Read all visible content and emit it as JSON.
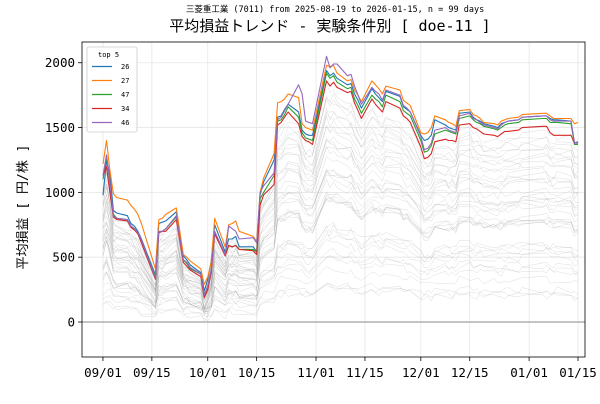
{
  "chart_data": {
    "type": "line",
    "suptitle": "三菱重工業 (7011) from 2025-08-19 to 2026-01-15, n = 99 days",
    "title": "平均損益トレンド - 実験条件別 [ doe-11 ]",
    "xlabel": "",
    "ylabel": "平均損益 [ 円/株 ]",
    "ylim": [
      -270,
      2160
    ],
    "xlim": [
      "2025-08-26",
      "2026-01-17"
    ],
    "y_ticks": [
      0,
      500,
      1000,
      1500,
      2000
    ],
    "x_tick_dates": [
      "2025-09-01",
      "2025-09-15",
      "2025-10-01",
      "2025-10-15",
      "2025-11-01",
      "2025-11-15",
      "2025-12-01",
      "2025-12-15",
      "2026-01-01",
      "2026-01-15"
    ],
    "x_tick_labels": [
      "09/01",
      "09/15",
      "10/01",
      "10/15",
      "11/01",
      "11/15",
      "12/01",
      "12/15",
      "01/01",
      "01/15"
    ],
    "grid": true,
    "zero_line": true,
    "legend_title": "top 5",
    "legend_position": "upper-left",
    "background_series_count": 40,
    "x": [
      "2025-09-01",
      "2025-09-02",
      "2025-09-03",
      "2025-09-04",
      "2025-09-05",
      "2025-09-08",
      "2025-09-09",
      "2025-09-10",
      "2025-09-11",
      "2025-09-12",
      "2025-09-16",
      "2025-09-17",
      "2025-09-18",
      "2025-09-19",
      "2025-09-22",
      "2025-09-24",
      "2025-09-25",
      "2025-09-26",
      "2025-09-29",
      "2025-09-30",
      "2025-10-01",
      "2025-10-02",
      "2025-10-03",
      "2025-10-06",
      "2025-10-07",
      "2025-10-08",
      "2025-10-09",
      "2025-10-10",
      "2025-10-14",
      "2025-10-15",
      "2025-10-16",
      "2025-10-17",
      "2025-10-20",
      "2025-10-21",
      "2025-10-22",
      "2025-10-23",
      "2025-10-24",
      "2025-10-27",
      "2025-10-28",
      "2025-10-29",
      "2025-10-30",
      "2025-10-31",
      "2025-11-04",
      "2025-11-05",
      "2025-11-06",
      "2025-11-07",
      "2025-11-10",
      "2025-11-11",
      "2025-11-12",
      "2025-11-13",
      "2025-11-14",
      "2025-11-17",
      "2025-11-18",
      "2025-11-19",
      "2025-11-20",
      "2025-11-21",
      "2025-11-25",
      "2025-11-26",
      "2025-11-27",
      "2025-11-28",
      "2025-12-01",
      "2025-12-02",
      "2025-12-03",
      "2025-12-04",
      "2025-12-05",
      "2025-12-08",
      "2025-12-09",
      "2025-12-10",
      "2025-12-11",
      "2025-12-12",
      "2025-12-15",
      "2025-12-16",
      "2025-12-17",
      "2025-12-18",
      "2025-12-19",
      "2025-12-22",
      "2025-12-23",
      "2025-12-24",
      "2025-12-25",
      "2025-12-26",
      "2025-12-29",
      "2025-12-30",
      "2026-01-05",
      "2026-01-06",
      "2026-01-07",
      "2026-01-08",
      "2026-01-09",
      "2026-01-13",
      "2026-01-14",
      "2026-01-15"
    ],
    "series": [
      {
        "name": "26",
        "color": "#1f77b4",
        "values": [
          980,
          1240,
          1150,
          860,
          840,
          820,
          760,
          740,
          700,
          640,
          360,
          760,
          770,
          780,
          850,
          510,
          480,
          440,
          380,
          240,
          330,
          470,
          750,
          540,
          640,
          640,
          660,
          580,
          580,
          540,
          980,
          1080,
          1250,
          1580,
          1590,
          1640,
          1680,
          1620,
          1480,
          1450,
          1440,
          1440,
          1940,
          1900,
          1920,
          1880,
          1830,
          1840,
          1760,
          1710,
          1650,
          1800,
          1760,
          1730,
          1700,
          1780,
          1740,
          1660,
          1640,
          1620,
          1440,
          1400,
          1410,
          1440,
          1560,
          1520,
          1500,
          1490,
          1480,
          1610,
          1620,
          1580,
          1560,
          1550,
          1530,
          1510,
          1500,
          1530,
          1540,
          1550,
          1560,
          1580,
          1590,
          1590,
          1570,
          1560,
          1560,
          1550,
          1380,
          1380
        ]
      },
      {
        "name": "27",
        "color": "#ff7f0e",
        "values": [
          1220,
          1400,
          1170,
          990,
          960,
          940,
          900,
          870,
          830,
          760,
          410,
          790,
          800,
          830,
          880,
          520,
          500,
          470,
          410,
          290,
          350,
          460,
          800,
          580,
          750,
          760,
          780,
          700,
          660,
          620,
          1000,
          1110,
          1300,
          1690,
          1700,
          1720,
          1760,
          1730,
          1530,
          1500,
          1490,
          1480,
          1980,
          1970,
          1980,
          1920,
          1860,
          1870,
          1790,
          1750,
          1700,
          1860,
          1830,
          1800,
          1760,
          1820,
          1790,
          1710,
          1690,
          1670,
          1460,
          1450,
          1460,
          1500,
          1590,
          1560,
          1540,
          1530,
          1510,
          1630,
          1640,
          1600,
          1590,
          1570,
          1540,
          1530,
          1520,
          1550,
          1560,
          1570,
          1580,
          1600,
          1610,
          1610,
          1590,
          1570,
          1570,
          1570,
          1530,
          1540
        ]
      },
      {
        "name": "47",
        "color": "#2ca02c",
        "values": [
          1100,
          1280,
          1070,
          830,
          800,
          790,
          740,
          720,
          690,
          620,
          350,
          690,
          700,
          720,
          810,
          480,
          450,
          410,
          370,
          200,
          280,
          400,
          690,
          520,
          590,
          580,
          590,
          560,
          560,
          540,
          950,
          1000,
          1130,
          1550,
          1560,
          1600,
          1660,
          1580,
          1460,
          1420,
          1410,
          1400,
          1920,
          1880,
          1900,
          1850,
          1800,
          1810,
          1720,
          1670,
          1610,
          1750,
          1720,
          1700,
          1660,
          1750,
          1700,
          1630,
          1610,
          1590,
          1400,
          1310,
          1320,
          1360,
          1450,
          1480,
          1470,
          1460,
          1450,
          1570,
          1590,
          1560,
          1540,
          1530,
          1510,
          1490,
          1480,
          1500,
          1520,
          1530,
          1540,
          1560,
          1570,
          1570,
          1540,
          1540,
          1540,
          1530,
          1370,
          1370
        ]
      },
      {
        "name": "34",
        "color": "#d62728",
        "values": [
          1130,
          1200,
          1000,
          810,
          790,
          780,
          730,
          710,
          680,
          610,
          330,
          690,
          700,
          700,
          790,
          460,
          430,
          400,
          350,
          190,
          250,
          380,
          680,
          510,
          590,
          580,
          590,
          560,
          550,
          520,
          900,
          980,
          1060,
          1520,
          1540,
          1580,
          1620,
          1530,
          1430,
          1400,
          1390,
          1370,
          1860,
          1820,
          1850,
          1810,
          1770,
          1780,
          1690,
          1630,
          1570,
          1720,
          1680,
          1650,
          1620,
          1700,
          1650,
          1590,
          1570,
          1540,
          1350,
          1260,
          1270,
          1300,
          1390,
          1410,
          1400,
          1400,
          1390,
          1520,
          1530,
          1500,
          1490,
          1470,
          1450,
          1440,
          1430,
          1450,
          1470,
          1470,
          1480,
          1500,
          1510,
          1510,
          1460,
          1440,
          1440,
          1440,
          1380,
          1390
        ]
      },
      {
        "name": "46",
        "color": "#9467bd",
        "values": [
          1130,
          1290,
          1080,
          820,
          800,
          790,
          740,
          720,
          690,
          630,
          340,
          700,
          700,
          720,
          820,
          480,
          460,
          420,
          370,
          210,
          280,
          400,
          700,
          520,
          740,
          720,
          700,
          640,
          650,
          610,
          1000,
          1050,
          1150,
          1560,
          1580,
          1630,
          1680,
          1830,
          1760,
          1550,
          1540,
          1530,
          2050,
          1960,
          1990,
          1990,
          1900,
          1910,
          1820,
          1750,
          1680,
          1810,
          1780,
          1760,
          1710,
          1790,
          1750,
          1670,
          1650,
          1620,
          1430,
          1330,
          1340,
          1380,
          1480,
          1500,
          1480,
          1470,
          1460,
          1590,
          1610,
          1570,
          1560,
          1540,
          1520,
          1500,
          1490,
          1520,
          1540,
          1550,
          1560,
          1580,
          1590,
          1590,
          1560,
          1550,
          1550,
          1550,
          1380,
          1390
        ]
      }
    ]
  }
}
